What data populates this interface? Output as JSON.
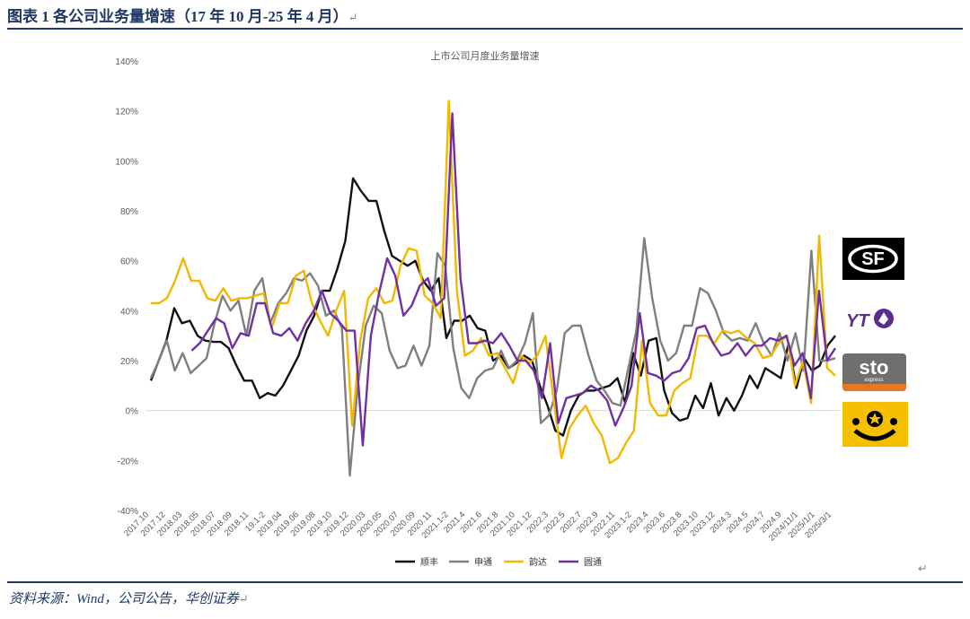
{
  "figure": {
    "title": "图表 1 各公司业务量增速（17 年 10 月-25 年 4 月）",
    "source": "资料来源：Wind，公司公告，华创证券",
    "para_mark": "↵"
  },
  "logos": {
    "sf": {
      "text": "SF",
      "color": "#000000"
    },
    "yto": {
      "text": "YTO",
      "color": "#5b2d8e"
    },
    "sto": {
      "text": "sto",
      "subtext": "express",
      "color": "#555555",
      "accent": "#e87722"
    },
    "zto": {
      "color": "#f5c000"
    }
  },
  "chart_data": {
    "type": "line",
    "title": "上市公司月度业务量增速",
    "xlabel": "",
    "ylabel": "",
    "ylim": [
      -40,
      140
    ],
    "yticks": [
      "140%",
      "120%",
      "100%",
      "80%",
      "60%",
      "40%",
      "20%",
      "0%",
      "-20%",
      "-40%"
    ],
    "ytick_values": [
      140,
      120,
      100,
      80,
      60,
      40,
      20,
      0,
      -20,
      -40
    ],
    "x_labels": [
      "2017.10",
      "2017.12",
      "2018.03",
      "2018.05",
      "2018.07",
      "2018.09",
      "2018.11",
      "19.1-2",
      "2019.04",
      "2019.06",
      "2019.08",
      "2019.10",
      "2019.12",
      "2020.03",
      "2020.05",
      "2020.07",
      "2020.09",
      "2020.11",
      "2021.1-2",
      "2021.4",
      "2021.6",
      "2021.8",
      "2021.10",
      "2021.12",
      "2022.3",
      "2022.5",
      "2022.7",
      "2022.9",
      "2022.11",
      "2023.1-2",
      "2023.4",
      "2023.6",
      "2023.8",
      "2023.10",
      "2023.12",
      "2024.3",
      "2024.5",
      "2024.7",
      "2024.9",
      "2024/11/1",
      "2025/1/1",
      "2025/3/1"
    ],
    "legend_position": "bottom",
    "grid": false,
    "series": [
      {
        "name": "顺丰",
        "color": "#111111",
        "values": [
          12,
          20,
          28,
          41,
          35,
          36,
          30,
          28,
          27.5,
          27.5,
          25,
          18,
          12,
          12,
          5,
          7,
          6,
          10,
          16,
          22,
          32,
          38,
          48,
          48,
          57,
          68,
          93,
          88,
          84,
          84,
          72,
          62,
          60,
          58,
          60,
          52,
          48,
          53,
          29,
          36,
          36,
          38,
          33,
          32,
          20,
          22,
          17,
          19,
          22,
          20,
          10,
          2,
          -8,
          -10,
          0,
          6,
          8,
          8,
          9,
          10,
          13,
          3,
          23,
          14,
          28,
          29,
          8,
          -1,
          -4,
          -3,
          6,
          1,
          11,
          -2,
          5,
          0,
          6,
          14,
          9,
          17,
          15,
          13,
          27,
          9,
          21,
          16,
          18,
          26,
          30
        ]
      },
      {
        "name": "申通",
        "color": "#7f7f7f",
        "values": [
          13,
          20,
          28,
          16,
          23,
          15,
          18,
          21,
          35,
          46,
          40,
          44,
          30,
          48,
          53,
          35,
          43,
          47,
          53,
          52,
          55,
          50,
          38,
          40,
          33,
          -26,
          10,
          34,
          42,
          39,
          24,
          17,
          18,
          26,
          18,
          26,
          63,
          58,
          25,
          9,
          5,
          13,
          16,
          17,
          24,
          17,
          20,
          27,
          39,
          -5,
          -2,
          8,
          31,
          34,
          34,
          22,
          12,
          8,
          3,
          2,
          17,
          32,
          69,
          45,
          28,
          20,
          23,
          34,
          34,
          49,
          47,
          40,
          31,
          28,
          29,
          28,
          35,
          27,
          22,
          31,
          20,
          31,
          16,
          64,
          20,
          20,
          21
        ]
      },
      {
        "name": "韵达",
        "color": "#f2b800",
        "values": [
          43,
          43,
          45,
          52,
          61,
          52,
          52,
          45,
          44,
          49,
          44,
          45,
          45,
          46,
          47,
          33,
          43,
          43,
          54,
          56,
          43,
          36,
          30,
          40,
          48,
          -6,
          28,
          45,
          49,
          43,
          44,
          58,
          65,
          64,
          46,
          43,
          37,
          124,
          48,
          22,
          24,
          29,
          22,
          23,
          17,
          11,
          22,
          19,
          22,
          30,
          5,
          -19,
          -7,
          -2,
          2,
          -5,
          -10,
          -21,
          -19,
          -13,
          -8,
          28,
          3,
          -2,
          -2,
          8,
          11,
          13,
          30,
          30,
          27,
          32,
          31,
          32,
          29,
          27,
          21,
          22,
          27,
          30,
          10,
          20,
          3,
          70,
          17,
          14
        ]
      },
      {
        "name": "圆通",
        "color": "#7030a0",
        "values": [
          null,
          null,
          null,
          null,
          null,
          24,
          27,
          32,
          37,
          35,
          25,
          31,
          30,
          43,
          43,
          31,
          30,
          33,
          28,
          35,
          40,
          48,
          39,
          36,
          32,
          32,
          -14,
          30,
          47,
          61,
          54,
          38,
          42,
          50,
          53,
          42,
          45,
          119,
          53,
          27,
          27,
          28,
          27,
          31,
          26,
          20,
          20,
          16,
          5,
          27,
          -5,
          5,
          6,
          7,
          10,
          8,
          4,
          -6,
          1,
          10,
          39,
          15,
          14,
          12,
          15,
          16,
          21,
          33,
          34,
          27,
          22,
          23,
          27,
          22,
          26,
          26,
          29,
          28,
          30,
          18,
          23,
          5,
          48,
          20,
          25
        ]
      }
    ]
  }
}
